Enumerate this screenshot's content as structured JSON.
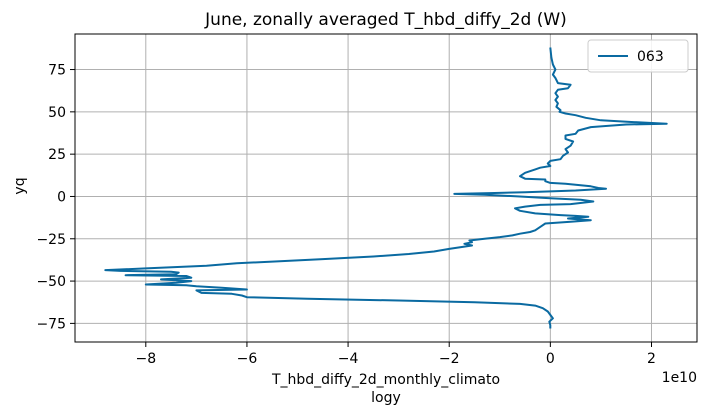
{
  "chart_data": {
    "type": "line",
    "title": "June, zonally averaged T_hbd_diffy_2d (W)",
    "xlabel": "T_hbd_diffy_2d_monthly_climato",
    "xlabel_line2": "logy",
    "ylabel": "yq",
    "x_offset_text": "1e10",
    "x_scale": 10000000000,
    "xlim": [
      -9.4,
      2.9
    ],
    "ylim": [
      -86,
      96
    ],
    "x_ticks": [
      -8,
      -6,
      -4,
      -2,
      0,
      2
    ],
    "x_tick_labels": [
      "−8",
      "−6",
      "−4",
      "−2",
      "0",
      "2"
    ],
    "y_ticks": [
      -75,
      -50,
      -25,
      0,
      25,
      50,
      75
    ],
    "y_tick_labels": [
      "−75",
      "−50",
      "−25",
      "0",
      "25",
      "50",
      "75"
    ],
    "grid": true,
    "legend_position": "top-right",
    "series": [
      {
        "name": "063",
        "color": "#0a6aa1",
        "points": [
          [
            0.0,
            88
          ],
          [
            0.02,
            82
          ],
          [
            0.05,
            78
          ],
          [
            0.1,
            75
          ],
          [
            0.05,
            72
          ],
          [
            0.1,
            70
          ],
          [
            0.15,
            67
          ],
          [
            0.4,
            66
          ],
          [
            0.35,
            64
          ],
          [
            0.15,
            63
          ],
          [
            0.1,
            61
          ],
          [
            0.15,
            59
          ],
          [
            0.1,
            57
          ],
          [
            0.15,
            55
          ],
          [
            0.12,
            53
          ],
          [
            0.2,
            51
          ],
          [
            0.18,
            50
          ],
          [
            0.3,
            49
          ],
          [
            0.5,
            48
          ],
          [
            0.7,
            46.5
          ],
          [
            1.0,
            45
          ],
          [
            1.6,
            44
          ],
          [
            2.3,
            43
          ],
          [
            1.5,
            42.5
          ],
          [
            0.8,
            41
          ],
          [
            0.55,
            39
          ],
          [
            0.5,
            37
          ],
          [
            0.3,
            36
          ],
          [
            0.3,
            34
          ],
          [
            0.45,
            32.5
          ],
          [
            0.4,
            30
          ],
          [
            0.3,
            28
          ],
          [
            0.35,
            26
          ],
          [
            0.25,
            24
          ],
          [
            0.2,
            22
          ],
          [
            0.0,
            21
          ],
          [
            -0.05,
            19.5
          ],
          [
            0.0,
            18
          ],
          [
            -0.2,
            17
          ],
          [
            -0.3,
            16
          ],
          [
            -0.5,
            14
          ],
          [
            -0.6,
            12
          ],
          [
            -0.5,
            10.5
          ],
          [
            -0.1,
            10
          ],
          [
            -0.1,
            9
          ],
          [
            0.0,
            8
          ],
          [
            0.3,
            7.5
          ],
          [
            0.8,
            6
          ],
          [
            0.95,
            5
          ],
          [
            1.1,
            4.5
          ],
          [
            0.5,
            3.5
          ],
          [
            -0.5,
            2.5
          ],
          [
            -1.2,
            2
          ],
          [
            -1.9,
            1.5
          ],
          [
            -1.3,
            1
          ],
          [
            -0.6,
            0
          ],
          [
            0.0,
            -1
          ],
          [
            0.6,
            -2
          ],
          [
            0.85,
            -3
          ],
          [
            0.4,
            -4.5
          ],
          [
            -0.2,
            -5
          ],
          [
            -0.5,
            -6
          ],
          [
            -0.7,
            -7
          ],
          [
            -0.6,
            -8.5
          ],
          [
            -0.3,
            -10
          ],
          [
            0.2,
            -11
          ],
          [
            0.5,
            -11.5
          ],
          [
            0.75,
            -12
          ],
          [
            0.35,
            -13
          ],
          [
            0.8,
            -14
          ],
          [
            0.4,
            -15
          ],
          [
            -0.1,
            -16
          ],
          [
            -0.2,
            -18
          ],
          [
            -0.3,
            -20
          ],
          [
            -0.4,
            -21
          ],
          [
            -0.6,
            -22
          ],
          [
            -0.75,
            -23
          ],
          [
            -1.0,
            -24
          ],
          [
            -1.3,
            -25
          ],
          [
            -1.6,
            -26
          ],
          [
            -1.55,
            -27
          ],
          [
            -1.7,
            -28
          ],
          [
            -1.55,
            -29
          ],
          [
            -2.0,
            -31
          ],
          [
            -2.3,
            -32.5
          ],
          [
            -2.8,
            -34
          ],
          [
            -3.5,
            -35.5
          ],
          [
            -4.5,
            -37
          ],
          [
            -5.5,
            -38.5
          ],
          [
            -6.2,
            -39.5
          ],
          [
            -6.8,
            -41
          ],
          [
            -8.0,
            -42.5
          ],
          [
            -8.8,
            -43.5
          ],
          [
            -8.5,
            -44
          ],
          [
            -7.5,
            -44.5
          ],
          [
            -7.35,
            -45
          ],
          [
            -7.4,
            -46
          ],
          [
            -8.4,
            -46.5
          ],
          [
            -7.2,
            -47
          ],
          [
            -7.1,
            -48
          ],
          [
            -7.7,
            -49
          ],
          [
            -7.1,
            -50
          ],
          [
            -7.4,
            -51
          ],
          [
            -8.0,
            -52
          ],
          [
            -7.2,
            -52.5
          ],
          [
            -7.0,
            -53
          ],
          [
            -6.5,
            -54
          ],
          [
            -6.0,
            -55
          ],
          [
            -7.0,
            -55.5
          ],
          [
            -6.9,
            -57
          ],
          [
            -6.3,
            -57.5
          ],
          [
            -6.1,
            -58.5
          ],
          [
            -6.0,
            -59.5
          ],
          [
            -4.8,
            -60.5
          ],
          [
            -3.0,
            -61.5
          ],
          [
            -1.5,
            -62.5
          ],
          [
            -0.6,
            -63.5
          ],
          [
            -0.3,
            -64.5
          ],
          [
            -0.15,
            -66
          ],
          [
            -0.05,
            -68
          ],
          [
            0.0,
            -70
          ],
          [
            0.05,
            -72
          ],
          [
            -0.02,
            -74
          ],
          [
            0.0,
            -76
          ],
          [
            0.0,
            -78
          ]
        ]
      }
    ]
  }
}
